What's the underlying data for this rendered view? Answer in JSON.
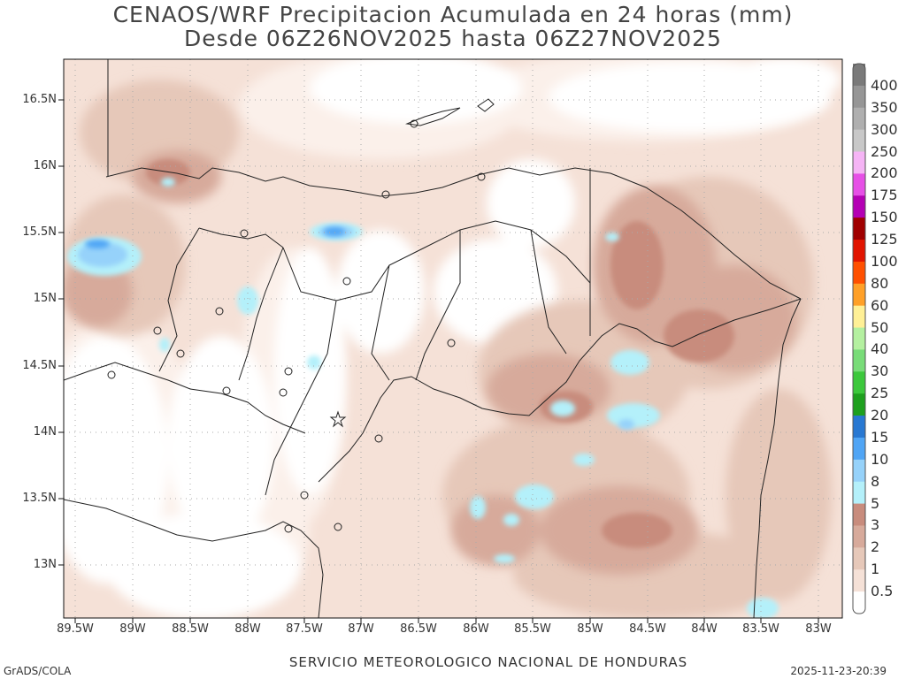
{
  "title_line1": "CENAOS/WRF Precipitacion Acumulada en 24 horas (mm)",
  "title_line2": "Desde 06Z26NOV2025 hasta 06Z27NOV2025",
  "latitudes": [
    "16.5N",
    "16N",
    "15.5N",
    "15N",
    "14.5N",
    "14N",
    "13.5N",
    "13N"
  ],
  "longitudes": [
    "89.5W",
    "89W",
    "88.5W",
    "88W",
    "87.5W",
    "87W",
    "86.5W",
    "86W",
    "85.5W",
    "85W",
    "84.5W",
    "84W",
    "83.5W",
    "83W"
  ],
  "colorbar": {
    "labels": [
      "400",
      "350",
      "300",
      "250",
      "200",
      "175",
      "150",
      "125",
      "100",
      "80",
      "60",
      "50",
      "40",
      "30",
      "25",
      "20",
      "15",
      "10",
      "8",
      "5",
      "3",
      "2",
      "1",
      "0.5"
    ],
    "colors": [
      "#7a7a7a",
      "#969696",
      "#afafaf",
      "#c8c8c8",
      "#f5b4f5",
      "#e650e6",
      "#b400b4",
      "#a00000",
      "#e11400",
      "#ff5000",
      "#ffa028",
      "#fff096",
      "#b4f0a0",
      "#78dc78",
      "#3cc83c",
      "#1ea01e",
      "#2878d2",
      "#50a5f5",
      "#96d2fa",
      "#b4f0fa",
      "#c88c7d",
      "#d7aa9b",
      "#e6c8b9",
      "#f5e1d7",
      "#ffffff"
    ]
  },
  "footer": {
    "left": "GrADS/COLA",
    "center": "SERVICIO METEOROLOGICO NACIONAL DE HONDURAS",
    "right": "2025-11-23-20:39"
  }
}
